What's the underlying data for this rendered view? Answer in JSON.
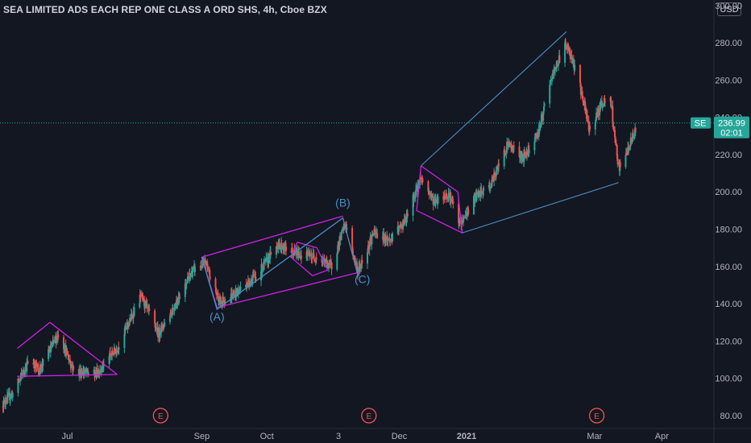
{
  "header": {
    "title": "SEA LIMITED ADS EACH REP ONE CLASS A ORD SHS, 4h, Cboe BZX",
    "currency": "USD"
  },
  "price_label": {
    "symbol": "SE",
    "value": "236.99",
    "countdown": "02:01"
  },
  "colors": {
    "background": "#131722",
    "axis_text": "#b2b5be",
    "bull": "#26a69a",
    "bear": "#ef5350",
    "wave_line": "#4a90c2",
    "channel": "#d020e6",
    "price_tag": "#26a69a",
    "earnings": "#ef5350"
  },
  "chart_data": {
    "type": "candlestick",
    "y_axis": {
      "position": "right",
      "range": [
        73,
        303
      ],
      "ticks": [
        "80.00",
        "100.00",
        "120.00",
        "140.00",
        "160.00",
        "180.00",
        "200.00",
        "220.00",
        "240.00",
        "260.00",
        "280.00",
        "300.00"
      ]
    },
    "x_axis": {
      "range": [
        "2020-05-31",
        "2021-04-25"
      ],
      "ticks": [
        {
          "date": "2020-07-01",
          "label": "Jul"
        },
        {
          "date": "2020-09-01",
          "label": "Sep"
        },
        {
          "date": "2020-10-01",
          "label": "Oct"
        },
        {
          "date": "2020-11-03",
          "label": "3"
        },
        {
          "date": "2020-12-01",
          "label": "Dec"
        },
        {
          "date": "2021-01-01",
          "label": "2021"
        },
        {
          "date": "2021-03-01",
          "label": "Mar"
        },
        {
          "date": "2021-04-01",
          "label": "Apr"
        }
      ]
    },
    "grid": false,
    "anchors": [
      {
        "date": "2020-05-31",
        "close": 85
      },
      {
        "date": "2020-06-06",
        "close": 92
      },
      {
        "date": "2020-06-14",
        "close": 111
      },
      {
        "date": "2020-06-18",
        "close": 104
      },
      {
        "date": "2020-06-27",
        "close": 124
      },
      {
        "date": "2020-07-04",
        "close": 104
      },
      {
        "date": "2020-07-14",
        "close": 102
      },
      {
        "date": "2020-07-24",
        "close": 116
      },
      {
        "date": "2020-08-04",
        "close": 144
      },
      {
        "date": "2020-08-12",
        "close": 124
      },
      {
        "date": "2020-08-19",
        "close": 138
      },
      {
        "date": "2020-08-28",
        "close": 158
      },
      {
        "date": "2020-09-03",
        "close": 162
      },
      {
        "date": "2020-09-09",
        "close": 141
      },
      {
        "date": "2020-09-16",
        "close": 145
      },
      {
        "date": "2020-09-27",
        "close": 156
      },
      {
        "date": "2020-10-06",
        "close": 172
      },
      {
        "date": "2020-10-14",
        "close": 167
      },
      {
        "date": "2020-10-24",
        "close": 165
      },
      {
        "date": "2020-10-31",
        "close": 160
      },
      {
        "date": "2020-11-06",
        "close": 183
      },
      {
        "date": "2020-11-12",
        "close": 157
      },
      {
        "date": "2020-11-19",
        "close": 178
      },
      {
        "date": "2020-11-27",
        "close": 174
      },
      {
        "date": "2020-12-04",
        "close": 185
      },
      {
        "date": "2020-12-11",
        "close": 208
      },
      {
        "date": "2020-12-17",
        "close": 195
      },
      {
        "date": "2020-12-24",
        "close": 199
      },
      {
        "date": "2020-12-29",
        "close": 182
      },
      {
        "date": "2021-01-05",
        "close": 197
      },
      {
        "date": "2021-01-12",
        "close": 203
      },
      {
        "date": "2021-01-20",
        "close": 226
      },
      {
        "date": "2021-01-27",
        "close": 218
      },
      {
        "date": "2021-02-03",
        "close": 232
      },
      {
        "date": "2021-02-10",
        "close": 264
      },
      {
        "date": "2021-02-16",
        "close": 280
      },
      {
        "date": "2021-02-22",
        "close": 258
      },
      {
        "date": "2021-02-27",
        "close": 232
      },
      {
        "date": "2021-03-04",
        "close": 247
      },
      {
        "date": "2021-03-08",
        "close": 252
      },
      {
        "date": "2021-03-12",
        "close": 212
      },
      {
        "date": "2021-03-16",
        "close": 222
      },
      {
        "date": "2021-03-21",
        "close": 236
      }
    ],
    "volatility": 3.2,
    "last_close": 236.99,
    "waves": [
      {
        "type": "line",
        "points": [
          [
            "2020-09-01",
            165
          ],
          [
            "2020-09-08",
            137
          ],
          [
            "2020-11-05",
            186
          ],
          [
            "2020-11-12",
            155
          ]
        ]
      }
    ],
    "channels": [
      {
        "type": "polyline",
        "points": [
          [
            "2020-06-08",
            116
          ],
          [
            "2020-06-23",
            130
          ]
        ]
      },
      {
        "type": "polyline",
        "points": [
          [
            "2020-06-08",
            101
          ],
          [
            "2020-07-24",
            102
          ]
        ]
      },
      {
        "type": "polyline",
        "points": [
          [
            "2020-07-24",
            102
          ],
          [
            "2020-06-23",
            130
          ]
        ]
      },
      {
        "type": "polyline",
        "points": [
          [
            "2020-09-01",
            165
          ],
          [
            "2020-11-05",
            187
          ]
        ]
      },
      {
        "type": "polyline",
        "points": [
          [
            "2020-09-08",
            138
          ],
          [
            "2020-11-13",
            157
          ]
        ]
      },
      {
        "type": "polyline",
        "points": [
          [
            "2020-09-01",
            165
          ],
          [
            "2020-09-08",
            138
          ]
        ]
      },
      {
        "type": "polyline",
        "points": [
          [
            "2020-10-15",
            173
          ],
          [
            "2020-10-24",
            170
          ],
          [
            "2020-10-29",
            158
          ],
          [
            "2020-10-22",
            155
          ],
          [
            "2020-10-12",
            165
          ],
          [
            "2020-10-15",
            173
          ]
        ]
      },
      {
        "type": "polyline",
        "points": [
          [
            "2020-12-11",
            214
          ],
          [
            "2020-12-28",
            200
          ],
          [
            "2020-12-30",
            178
          ],
          [
            "2020-12-09",
            190
          ],
          [
            "2020-12-11",
            214
          ]
        ]
      }
    ],
    "wave_lines": [
      {
        "points": [
          [
            "2020-12-11",
            214
          ],
          [
            "2021-02-16",
            286
          ]
        ]
      },
      {
        "points": [
          [
            "2020-12-30",
            178
          ],
          [
            "2021-03-12",
            205
          ]
        ]
      }
    ],
    "annotations": [
      {
        "text": "(A)",
        "date": "2020-09-08",
        "value": 131
      },
      {
        "text": "(B)",
        "date": "2020-11-05",
        "value": 192
      },
      {
        "text": "(C)",
        "date": "2020-11-14",
        "value": 151
      }
    ],
    "events": [
      {
        "label": "E",
        "date": "2020-08-13"
      },
      {
        "label": "E",
        "date": "2020-11-17"
      },
      {
        "label": "E",
        "date": "2021-03-02"
      }
    ]
  }
}
